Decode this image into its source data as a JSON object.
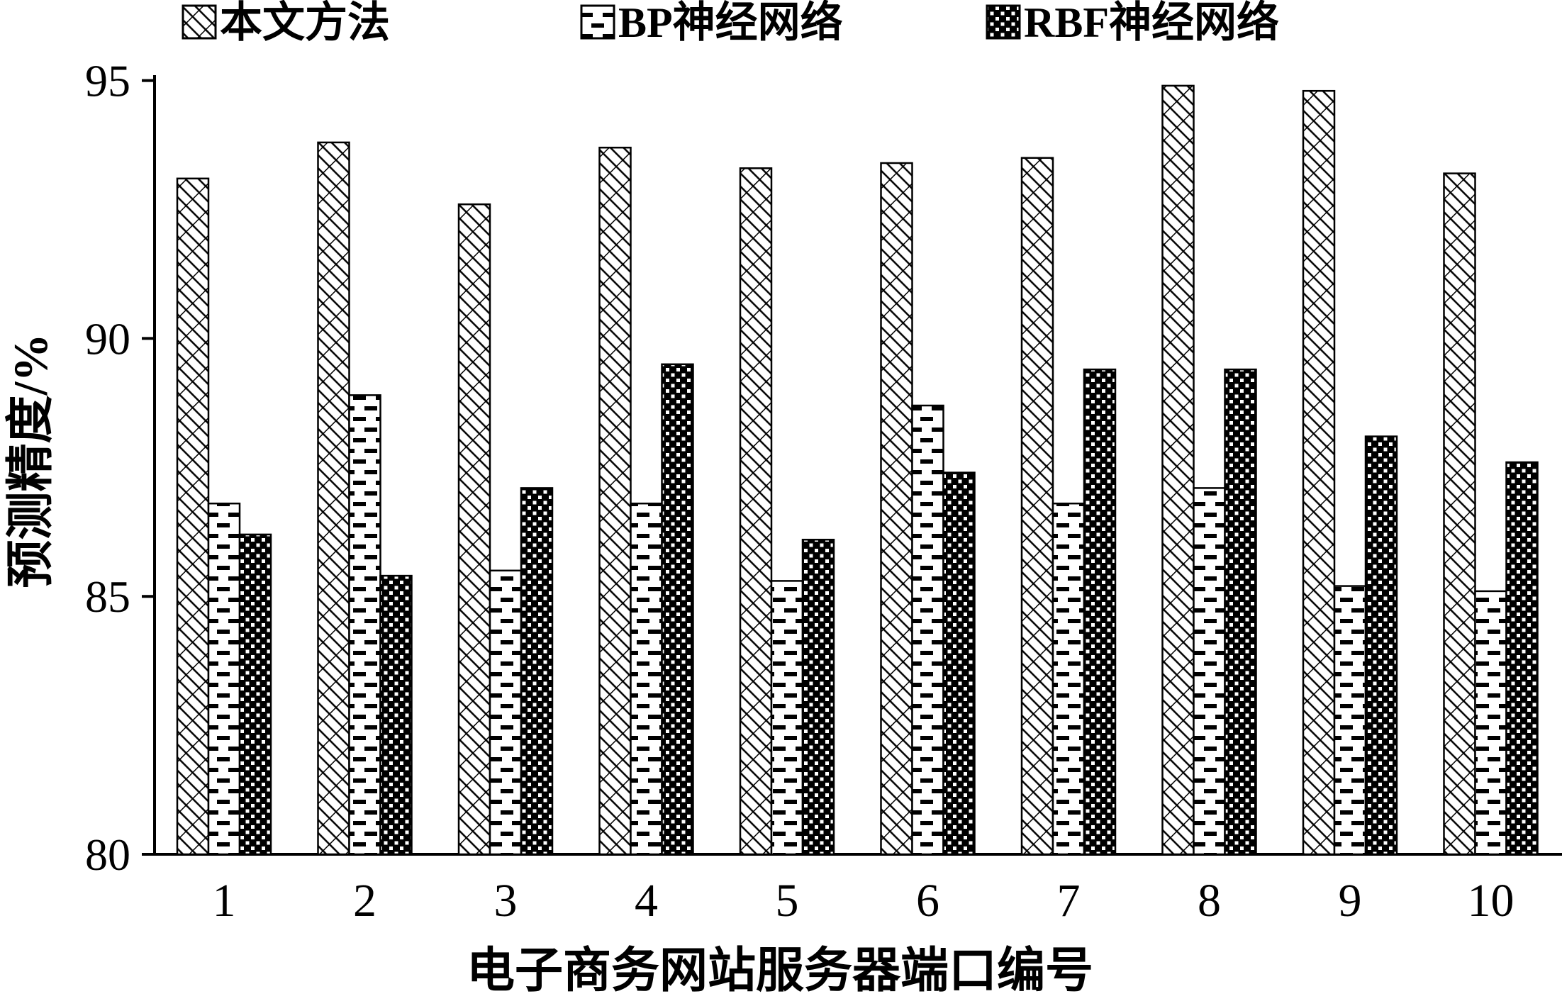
{
  "figure": {
    "background": "#ffffff",
    "foreground": "#000000"
  },
  "chart_data": {
    "type": "bar",
    "title": "",
    "categories": [
      "1",
      "2",
      "3",
      "4",
      "5",
      "6",
      "7",
      "8",
      "9",
      "10"
    ],
    "series": [
      {
        "name": "本文方法",
        "pattern": "diagonal-weave-hatch",
        "values": [
          93.1,
          93.8,
          92.6,
          93.7,
          93.3,
          93.4,
          93.5,
          94.9,
          94.8,
          93.2
        ]
      },
      {
        "name": "BP神经网络",
        "pattern": "dash-stipple",
        "values": [
          86.8,
          88.9,
          85.5,
          86.8,
          85.3,
          88.7,
          86.8,
          87.1,
          85.2,
          85.1
        ]
      },
      {
        "name": "RBF神经网络",
        "pattern": "checker-dots",
        "values": [
          86.2,
          85.4,
          87.1,
          89.5,
          86.1,
          87.4,
          89.4,
          89.4,
          88.1,
          87.6
        ]
      }
    ],
    "xlabel": "电子商务网站服务器端口编号",
    "ylabel": "预测精度/%",
    "ylim": [
      80,
      95
    ],
    "yticks": [
      80,
      85,
      90,
      95
    ],
    "grid": false,
    "legend_position": "top",
    "bar_color": "#000000",
    "bar_fill_background": "#ffffff"
  }
}
